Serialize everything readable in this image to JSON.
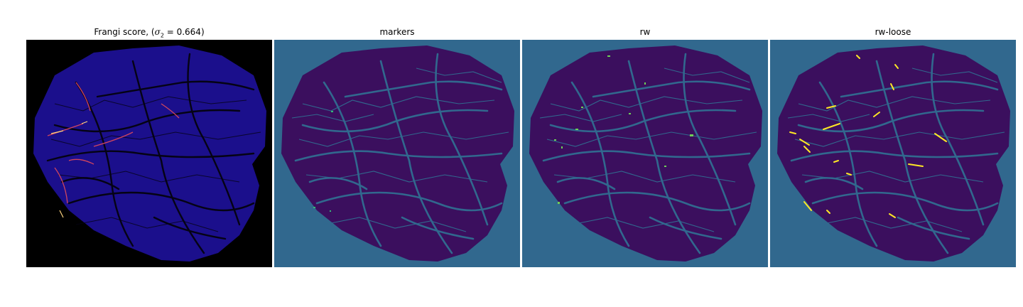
{
  "figure": {
    "panels": [
      {
        "title_prefix": "Frangi score, (",
        "title_sigma": "σ",
        "title_subscript": "2",
        "title_suffix": " = 0.664)",
        "colormap": "magma",
        "background": "#000000",
        "field": "#1b0f8c",
        "vein": "#050314",
        "highlight": "#d0455e",
        "hot": "#ffd580"
      },
      {
        "title": "markers",
        "colormap": "viridis",
        "background": "#31688e",
        "field": "#3b0f5e",
        "vein": "#31688e",
        "highlight": "#35b779"
      },
      {
        "title": "rw",
        "colormap": "viridis",
        "background": "#31688e",
        "field": "#3b0f5e",
        "vein": "#31688e",
        "highlight": "#6ece58"
      },
      {
        "title": "rw-loose",
        "colormap": "viridis",
        "background": "#31688e",
        "field": "#3b0f5e",
        "vein": "#31688e",
        "highlight": "#fde725"
      }
    ]
  }
}
